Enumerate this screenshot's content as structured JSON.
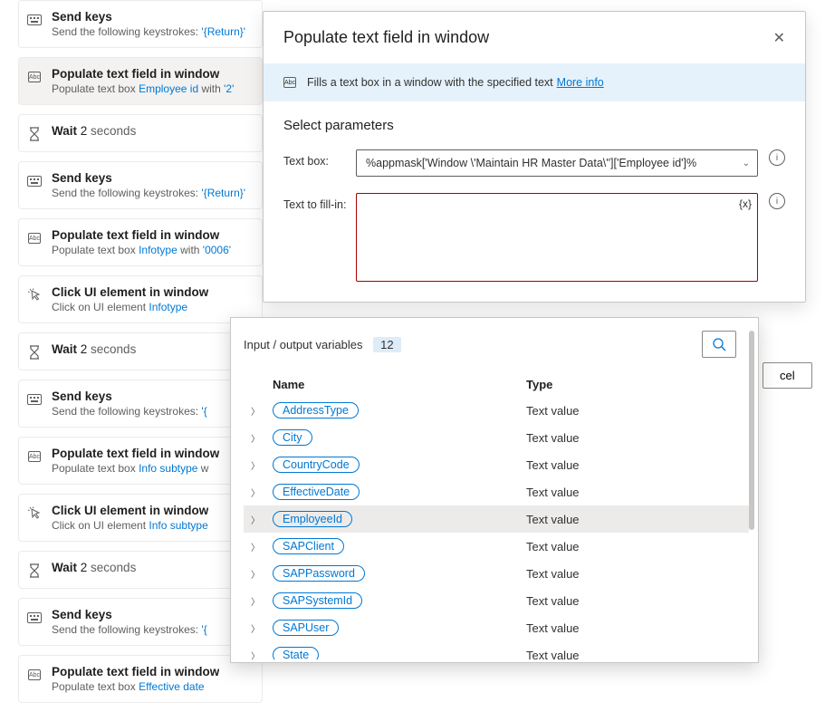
{
  "flow": [
    {
      "kind": "keys",
      "title": "Send keys",
      "sub_pre": "Send the following keystrokes: ",
      "link": "'{Return}'"
    },
    {
      "kind": "populate",
      "title": "Populate text field in window",
      "sub_pre": "Populate text box ",
      "link": "Employee id",
      "sub_mid": " with ",
      "val": "'2'",
      "selected": true
    },
    {
      "kind": "wait",
      "title": "Wait",
      "val": "2",
      "unit": "seconds"
    },
    {
      "kind": "keys",
      "title": "Send keys",
      "sub_pre": "Send the following keystrokes: ",
      "link": "'{Return}'"
    },
    {
      "kind": "populate",
      "title": "Populate text field in window",
      "sub_pre": "Populate text box ",
      "link": "Infotype",
      "sub_mid": " with ",
      "val": "'0006'"
    },
    {
      "kind": "click",
      "title": "Click UI element in window",
      "sub_pre": "Click on UI element ",
      "link": "Infotype"
    },
    {
      "kind": "wait",
      "title": "Wait",
      "val": "2",
      "unit": "seconds"
    },
    {
      "kind": "keys",
      "title": "Send keys",
      "sub_pre": "Send the following keystrokes: ",
      "link": "'{"
    },
    {
      "kind": "populate",
      "title": "Populate text field in window",
      "sub_pre": "Populate text box ",
      "link": "Info subtype",
      "sub_mid": " w"
    },
    {
      "kind": "click",
      "title": "Click UI element in window",
      "sub_pre": "Click on UI element ",
      "link": "Info subtype"
    },
    {
      "kind": "wait",
      "title": "Wait",
      "val": "2",
      "unit": "seconds"
    },
    {
      "kind": "keys",
      "title": "Send keys",
      "sub_pre": "Send the following keystrokes: ",
      "link": "'{"
    },
    {
      "kind": "populate",
      "title": "Populate text field in window",
      "sub_pre": "Populate text box ",
      "link": "Effective date"
    }
  ],
  "dialog": {
    "title": "Populate text field in window",
    "info": "Fills a text box in a window with the specified text",
    "more": "More info",
    "section": "Select parameters",
    "textboxLabel": "Text box:",
    "textboxValue": "%appmask['Window \\'Maintain HR Master Data\\'']['Employee id']%",
    "fillLabel": "Text to fill-in:",
    "varToken": "{x}",
    "cancel": "cel"
  },
  "vars": {
    "label": "Input / output variables",
    "count": "12",
    "head_name": "Name",
    "head_type": "Type",
    "rows": [
      {
        "name": "AddressType",
        "type": "Text value"
      },
      {
        "name": "City",
        "type": "Text value"
      },
      {
        "name": "CountryCode",
        "type": "Text value"
      },
      {
        "name": "EffectiveDate",
        "type": "Text value"
      },
      {
        "name": "EmployeeId",
        "type": "Text value",
        "hover": true
      },
      {
        "name": "SAPClient",
        "type": "Text value"
      },
      {
        "name": "SAPPassword",
        "type": "Text value"
      },
      {
        "name": "SAPSystemId",
        "type": "Text value"
      },
      {
        "name": "SAPUser",
        "type": "Text value"
      },
      {
        "name": "State",
        "type": "Text value"
      }
    ]
  }
}
